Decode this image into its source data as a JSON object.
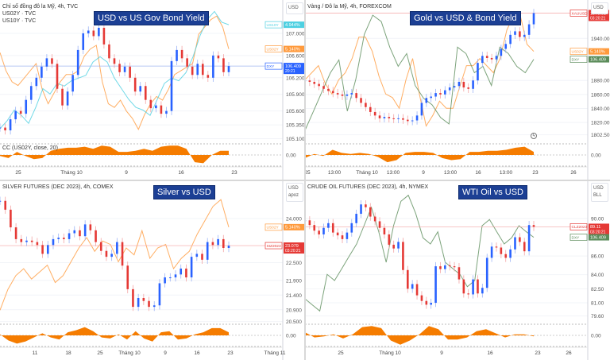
{
  "chart_data": [
    {
      "type": "candlestick",
      "title_badge": "USD vs US Gov Bond Yield",
      "header_lines": [
        "Chỉ số đồng đô la Mỹ, 4h, TVC",
        "US02Y · TVC",
        "US10Y · TVC"
      ],
      "units": [
        "USD"
      ],
      "main": {
        "symbol": "DXY",
        "last": "106.409",
        "countdown": "20:21",
        "color": "#2962ff",
        "line_color": "#9fb5f0",
        "values": [
          105.3,
          105.25,
          105.45,
          105.6,
          105.55,
          105.8,
          106.05,
          106.2,
          106.4,
          106.55,
          106.45,
          106.0,
          105.7,
          105.95,
          106.25,
          106.7,
          107.0,
          107.05,
          106.95,
          107.1,
          106.8,
          106.55,
          106.45,
          106.3,
          106.4,
          106.2,
          105.95,
          106.05,
          105.8,
          105.65,
          105.7,
          105.55,
          105.6,
          106.5,
          106.7,
          106.55,
          106.4,
          106.25,
          106.45,
          106.25,
          106.2,
          106.6,
          106.55,
          106.3,
          106.41
        ]
      },
      "ylim": [
        105.05,
        107.53
      ],
      "yticks": [
        "107.000",
        "106.600",
        "106.200",
        "105.900",
        "105.600",
        "105.350",
        "105.100"
      ],
      "overlays": [
        {
          "name": "US02Y",
          "last": "5.140%",
          "color": "#ff9a3c",
          "range": [
            4.9,
            5.25
          ],
          "values": [
            5.13,
            5.08,
            5.05,
            5.04,
            5.06,
            5.08,
            5.1,
            5.03,
            4.99,
            5.02,
            5.05,
            5.07,
            5.07,
            5.08,
            5.12,
            5.14,
            5.15,
            5.05,
            4.99,
            4.98,
            5.0,
            4.97,
            4.95,
            4.92,
            4.96,
            4.99,
            5.01,
            5.0,
            5.03,
            5.07,
            5.08,
            5.09,
            5.1,
            5.18,
            5.2,
            5.22,
            5.23,
            5.2,
            5.14
          ]
        },
        {
          "name": "US10Y",
          "last": "4.944%",
          "color": "#4dd0e1",
          "range": [
            4.52,
            5.0
          ],
          "values": [
            4.55,
            4.58,
            4.62,
            4.6,
            4.57,
            4.63,
            4.7,
            4.68,
            4.72,
            4.71,
            4.73,
            4.74,
            4.75,
            4.8,
            4.82,
            4.8,
            4.74,
            4.7,
            4.66,
            4.63,
            4.62,
            4.6,
            4.66,
            4.72,
            4.74,
            4.73,
            4.76,
            4.82,
            4.9,
            4.96,
            4.99,
            4.95,
            4.94
          ]
        }
      ],
      "indicator": {
        "label": "CC (US02Y, close, 20)",
        "zero_label": "0.00",
        "color": "#f57c00",
        "values": [
          -0.1,
          -0.3,
          0.3,
          -0.1,
          -0.4,
          -0.3,
          0.4,
          0.6,
          0.7,
          0.7,
          0.8,
          0.6,
          0.9,
          0.8,
          0.3,
          0.3,
          0.4,
          0.6,
          0.4,
          0.8,
          0.9,
          0.9,
          0.6,
          -0.7,
          -0.8,
          0.0,
          0.4,
          0.4
        ]
      },
      "xticks": [
        "25",
        "Tháng 10",
        "9",
        "16",
        "23"
      ]
    },
    {
      "type": "candlestick",
      "title_badge": "Gold vs USD & Bond Yield",
      "header_lines": [
        "Vàng / Đô la Mỹ, 4h, FOREXCOM"
      ],
      "units": [
        "USD"
      ],
      "main": {
        "symbol": "XAUUSD",
        "last": "1976.02",
        "countdown": "03:20:21",
        "color": "#e53935",
        "line_color": "#f4a5a3",
        "values": [
          1880,
          1878,
          1875,
          1872,
          1868,
          1865,
          1862,
          1860,
          1858,
          1860,
          1862,
          1855,
          1848,
          1842,
          1835,
          1830,
          1826,
          1828,
          1826,
          1825,
          1826,
          1824,
          1822,
          1823,
          1830,
          1848,
          1855,
          1857,
          1862,
          1860,
          1866,
          1870,
          1872,
          1878,
          1870,
          1868,
          1880,
          1905,
          1915,
          1912,
          1910,
          1915,
          1925,
          1932,
          1945,
          1950,
          1942,
          1945,
          1960,
          1976
        ]
      },
      "ylim": [
        1793,
        1989
      ],
      "yticks": [
        "1940.00",
        "1880.00",
        "1860.00",
        "1840.00",
        "1820.00",
        "1802.50"
      ],
      "overlays": [
        {
          "name": "US02Y",
          "last": "5.140%",
          "color": "#ff9a3c",
          "range": [
            4.9,
            5.26
          ],
          "values": [
            5.06,
            5.08,
            5.1,
            5.05,
            5.02,
            5.06,
            5.08,
            5.12,
            5.18,
            5.18,
            5.14,
            5.07,
            5.02,
            5.01,
            4.98,
            5.06,
            5.12,
            5.02,
            4.93,
            4.96,
            5.0,
            4.98,
            4.98,
            5.04,
            5.1,
            5.1,
            5.12,
            5.1,
            5.08,
            5.12,
            5.2,
            5.24,
            5.24,
            5.16,
            5.14
          ]
        },
        {
          "name": "DXY",
          "last": "106.409",
          "color": "#5b8c5a",
          "range": [
            105.2,
            107.2
          ],
          "values": [
            105.3,
            105.6,
            105.9,
            106.2,
            106.4,
            105.6,
            106.1,
            106.8,
            107.1,
            107.0,
            106.6,
            106.3,
            106.5,
            106.0,
            105.8,
            105.7,
            105.5,
            105.4,
            106.6,
            106.5,
            106.2,
            106.3,
            106.0,
            106.6,
            106.5,
            106.3,
            106.2,
            106.41
          ]
        }
      ],
      "indicator": {
        "label": "",
        "zero_label": "0.00",
        "color": "#f57c00",
        "values": [
          -0.3,
          0.1,
          -0.1,
          0.5,
          0.2,
          0.1,
          0.2,
          0.1,
          -0.2,
          -0.7,
          -0.5,
          0.2,
          0.3,
          0.3,
          0.2,
          -0.3,
          -0.5,
          -0.4,
          0.3,
          0.3,
          0.4,
          0.4,
          0.5,
          0.7,
          0.8,
          0.3
        ]
      },
      "xticks": [
        "25",
        "13:00",
        "Tháng 10",
        "13:00",
        "9",
        "13:00",
        "16",
        "13:00",
        "23",
        "26"
      ]
    },
    {
      "type": "candlestick",
      "title_badge": "Silver vs USD",
      "header_lines": [
        "SILVER FUTURES (DEC 2023), 4h, COMEX"
      ],
      "units": [
        "USD",
        "apoz"
      ],
      "main": {
        "symbol": "SIZ2023",
        "last": "23.079",
        "countdown": "03:20:21",
        "color": "#e53935",
        "line_color": "#f4a5a3",
        "values": [
          24.6,
          24.3,
          23.7,
          23.3,
          23.2,
          23.25,
          23.2,
          23.1,
          22.8,
          23.1,
          23.3,
          23.35,
          23.3,
          23.5,
          23.6,
          23.4,
          23.8,
          23.6,
          23.2,
          22.9,
          22.7,
          22.8,
          23.2,
          22.4,
          21.6,
          21.0,
          21.3,
          21.2,
          21.0,
          21.05,
          21.8,
          22.0,
          22.0,
          22.1,
          22.3,
          22.0,
          22.7,
          22.8,
          22.6,
          23.2,
          23.1,
          23.3,
          23.0,
          23.08
        ]
      },
      "ylim": [
        20.49,
        25.16
      ],
      "yticks": [
        "24.000",
        "22.500",
        "21.900",
        "21.400",
        "20.900",
        "20.500"
      ],
      "overlays": [
        {
          "name": "US02Y",
          "last": "5.140%",
          "color": "#ff9a3c",
          "range": [
            4.88,
            5.25
          ],
          "values": [
            4.9,
            4.96,
            5.0,
            5.02,
            4.99,
            5.01,
            5.03,
            4.98,
            5.0,
            5.04,
            5.08,
            5.11,
            5.07,
            5.1,
            5.09,
            5.04,
            5.08,
            5.06,
            5.13,
            5.05,
            5.08,
            5.09,
            5.02,
            5.05,
            5.07,
            5.12,
            5.16,
            5.2,
            5.22,
            5.14
          ]
        }
      ],
      "indicator": {
        "label": "",
        "zero_label": "0.00",
        "color": "#f57c00",
        "values": [
          0.1,
          -0.5,
          -0.8,
          -0.6,
          -0.2,
          0.2,
          -0.2,
          -0.4,
          0.3,
          0.5,
          0.8,
          0.4,
          -0.2,
          -0.3,
          0.1,
          -0.4,
          0.4,
          -0.3,
          -0.6,
          0.3,
          0.4,
          -0.4,
          -0.3,
          0.1,
          0.3,
          0.7,
          0.7,
          0.3
        ]
      },
      "xticks": [
        "11",
        "18",
        "25",
        "Tháng 10",
        "9",
        "16",
        "23",
        "Tháng 11"
      ]
    },
    {
      "type": "candlestick",
      "title_badge": "WTI Oil vs USD",
      "header_lines": [
        "CRUDE OIL FUTURES (DEC 2023), 4h, NYMEX"
      ],
      "units": [
        "USD",
        "BLL"
      ],
      "main": {
        "symbol": "CLZ2023",
        "last": "89.11",
        "countdown": "03:20:21",
        "color": "#e53935",
        "line_color": "#f4a5a3",
        "values": [
          89.8,
          89.3,
          88.7,
          88.3,
          89.0,
          89.5,
          88.5,
          88.2,
          87.8,
          88.5,
          89.5,
          90.5,
          91.5,
          91.2,
          90.2,
          89.7,
          89.0,
          88.3,
          87.2,
          86.8,
          87.5,
          84.5,
          82.5,
          83.0,
          81.8,
          81.2,
          80.8,
          81.0,
          84.9,
          84.6,
          85.0,
          84.9,
          84.8,
          83.5,
          82.0,
          81.9,
          83.5,
          82.0,
          82.6,
          85.8,
          87.0,
          86.9,
          86.2,
          85.8,
          86.7,
          88.0,
          87.5,
          86.5,
          89.3,
          89.11
        ]
      },
      "ylim": [
        78.97,
        93.64
      ],
      "yticks": [
        "90.00",
        "86.00",
        "84.00",
        "82.50",
        "81.00",
        "79.60"
      ],
      "overlays": [
        {
          "name": "DXY",
          "last": "106.409",
          "color": "#5b8c5a",
          "range": [
            105.1,
            107.2
          ],
          "values": [
            105.4,
            105.3,
            105.2,
            105.8,
            105.7,
            105.9,
            106.1,
            106.3,
            106.6,
            106.9,
            106.5,
            106.0,
            106.6,
            107.0,
            107.1,
            106.8,
            106.4,
            106.3,
            106.5,
            106.0,
            105.9,
            105.8,
            105.6,
            105.7,
            106.6,
            106.7,
            106.5,
            106.3,
            106.4,
            106.6,
            106.5,
            106.41
          ]
        }
      ],
      "indicator": {
        "label": "",
        "zero_label": "0.00",
        "color": "#f57c00",
        "values": [
          0.3,
          -0.2,
          -0.1,
          0.1,
          -0.3,
          0.1,
          0.8,
          0.9,
          0.7,
          -0.5,
          -0.9,
          -0.5,
          0.1,
          0.9,
          0.6,
          -0.4,
          -0.4,
          -0.2,
          0.4,
          0.6,
          0.2,
          -0.2,
          0.1,
          0.1,
          -0.1
        ]
      },
      "xticks": [
        "25",
        "Tháng 10",
        "9",
        "16",
        "23",
        "26"
      ]
    }
  ]
}
